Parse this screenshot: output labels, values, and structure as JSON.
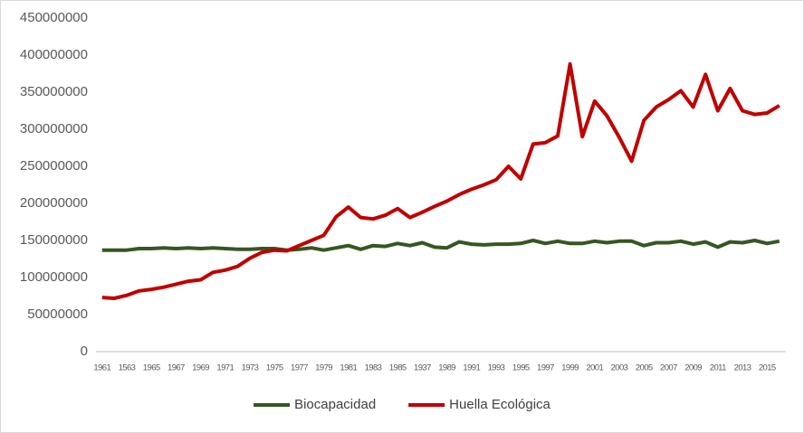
{
  "chart_data": {
    "type": "line",
    "categories": [
      "1961",
      null,
      "1563",
      null,
      "1965",
      null,
      "1967",
      null,
      "1969",
      null,
      "1971",
      null,
      "1973",
      null,
      "1975",
      null,
      "1977",
      null,
      "1979",
      null,
      "1981",
      null,
      "1983",
      null,
      "1985",
      null,
      "1937",
      null,
      "1989",
      null,
      "1991",
      null,
      "1993",
      null,
      "1995",
      null,
      "1997",
      null,
      "1999",
      null,
      "2001",
      null,
      "2003",
      null,
      "2005",
      null,
      "2007",
      null,
      "2009",
      null,
      "2011",
      null,
      "2013",
      null,
      "2015",
      null
    ],
    "series": [
      {
        "name": "Biocapacidad",
        "color": "#375623",
        "values": [
          137000000,
          137000000,
          137000000,
          139000000,
          139000000,
          140000000,
          139000000,
          140000000,
          139000000,
          140000000,
          139000000,
          138000000,
          138000000,
          139000000,
          139000000,
          137000000,
          138000000,
          140000000,
          137000000,
          140000000,
          143000000,
          138000000,
          143000000,
          142000000,
          146000000,
          143000000,
          147000000,
          141000000,
          140000000,
          148000000,
          145000000,
          144000000,
          145000000,
          145000000,
          146000000,
          150000000,
          146000000,
          149000000,
          146000000,
          146000000,
          149000000,
          147000000,
          149000000,
          149000000,
          143000000,
          147000000,
          147000000,
          149000000,
          145000000,
          148000000,
          141000000,
          148000000,
          147000000,
          150000000,
          146000000,
          149000000
        ]
      },
      {
        "name": "Huella Ecológica",
        "color": "#c00000",
        "values": [
          73000000,
          72000000,
          76000000,
          82000000,
          84000000,
          87000000,
          91000000,
          95000000,
          97000000,
          107000000,
          110000000,
          115000000,
          126000000,
          134000000,
          137000000,
          136000000,
          143000000,
          150000000,
          157000000,
          182000000,
          195000000,
          181000000,
          179000000,
          184000000,
          193000000,
          181000000,
          188000000,
          196000000,
          203000000,
          212000000,
          219000000,
          225000000,
          232000000,
          250000000,
          233000000,
          280000000,
          282000000,
          291000000,
          388000000,
          290000000,
          338000000,
          318000000,
          289000000,
          257000000,
          312000000,
          330000000,
          340000000,
          352000000,
          330000000,
          374000000,
          325000000,
          355000000,
          325000000,
          320000000,
          322000000,
          332000000
        ]
      }
    ],
    "ylim": [
      0,
      450000000
    ],
    "yticks": [
      0,
      50000000,
      100000000,
      150000000,
      200000000,
      250000000,
      300000000,
      350000000,
      400000000,
      450000000
    ],
    "grid": false,
    "legend": "bottom"
  }
}
